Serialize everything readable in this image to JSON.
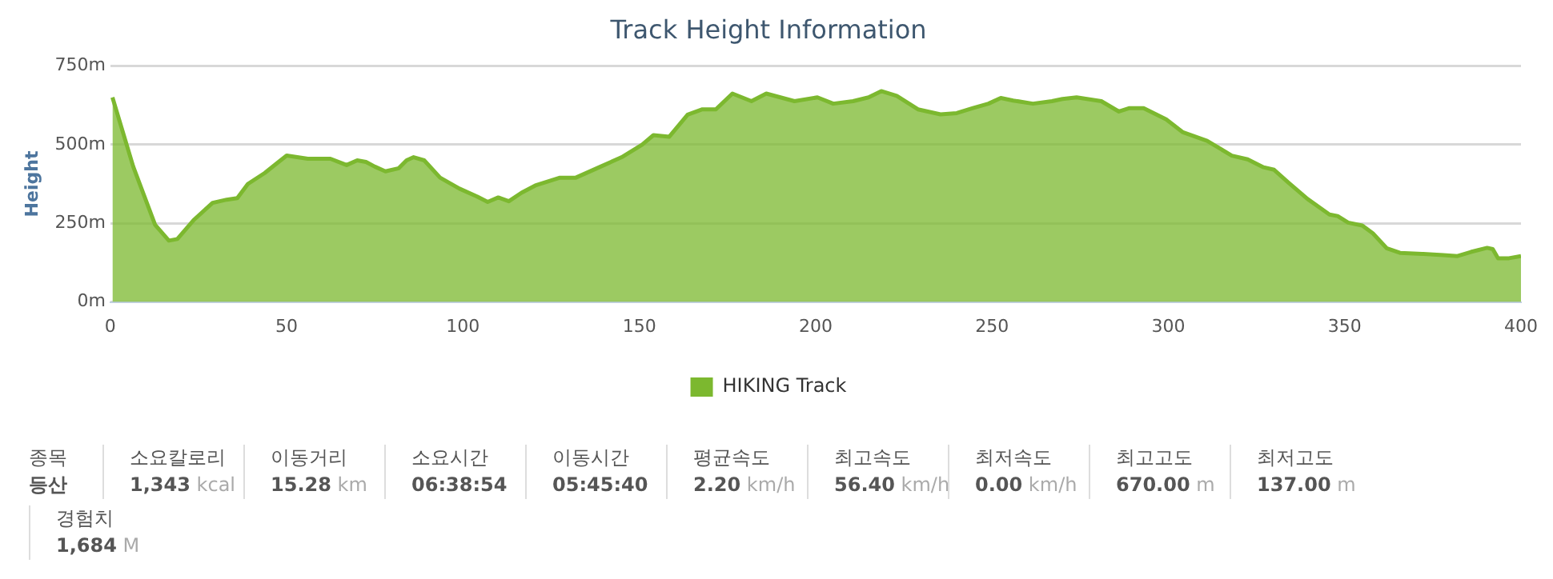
{
  "chart_data": {
    "type": "area",
    "title": "Track Height Information",
    "ylabel": "Height",
    "ylim": [
      0,
      750
    ],
    "yticks": [
      {
        "value": 0,
        "label": "0m"
      },
      {
        "value": 250,
        "label": "250m"
      },
      {
        "value": 500,
        "label": "500m"
      },
      {
        "value": 750,
        "label": "750m"
      }
    ],
    "xlim": [
      0,
      400
    ],
    "xticks": [
      0,
      50,
      100,
      150,
      200,
      250,
      300,
      350,
      400
    ],
    "grid": "y",
    "legend": "bottom",
    "marker": "none",
    "series": [
      {
        "name": "HIKING Track",
        "color": "#7cb82f",
        "x": [
          0.6,
          6.5,
          12.7,
          16.6,
          19,
          23.6,
          29,
          33,
          36,
          39,
          43.8,
          47.7,
          50,
          53,
          56,
          62.4,
          67,
          70,
          72.5,
          75,
          78,
          81.8,
          84,
          86,
          89,
          93.5,
          99,
          104,
          107,
          110,
          113,
          116.6,
          120.5,
          127.5,
          132,
          139,
          145,
          150.8,
          154,
          158.5,
          163.7,
          167.9,
          171.7,
          176.4,
          181.8,
          186,
          194,
          200.5,
          205,
          210.6,
          215,
          218.6,
          223,
          229,
          235.4,
          240,
          244.6,
          249,
          252.5,
          256,
          261.6,
          267,
          270,
          274,
          281,
          286,
          289,
          293,
          299.4,
          304,
          311,
          318,
          322.5,
          327,
          330,
          334,
          339.5,
          345.7,
          348,
          351,
          355,
          358,
          361.9,
          365.7,
          372,
          378,
          382,
          385.8,
          390.4,
          392,
          393.5,
          396.6,
          400
        ],
        "values": [
          650,
          430,
          245,
          195,
          200,
          260,
          315,
          325,
          330,
          375,
          410,
          445,
          465,
          460,
          455,
          455,
          435,
          450,
          445,
          430,
          415,
          425,
          450,
          460,
          450,
          395,
          360,
          335,
          318,
          332,
          320,
          347,
          370,
          395,
          395,
          430,
          460,
          500,
          530,
          525,
          595,
          612,
          612,
          662,
          638,
          662,
          638,
          650,
          630,
          638,
          650,
          670,
          655,
          612,
          596,
          600,
          616,
          630,
          648,
          640,
          630,
          638,
          645,
          650,
          638,
          605,
          616,
          616,
          580,
          540,
          512,
          465,
          453,
          428,
          420,
          380,
          327,
          278,
          273,
          252,
          243,
          218,
          171,
          156,
          153,
          149,
          146,
          159,
          172,
          168,
          139,
          139,
          146
        ]
      }
    ],
    "annotations": [
      "종목",
      "등산",
      "소요칼로리",
      "1,343 kcal",
      "이동거리",
      "15.28 km",
      "소요시간",
      "06:38:54",
      "이동시간",
      "05:45:40",
      "평균속도",
      "2.20 km/h",
      "최고속도",
      "56.40 km/h",
      "최저속도",
      "0.00 km/h",
      "최고고도",
      "670.00 m",
      "최저고도",
      "137.00 m",
      "경험치",
      "1,684 M"
    ]
  }
}
